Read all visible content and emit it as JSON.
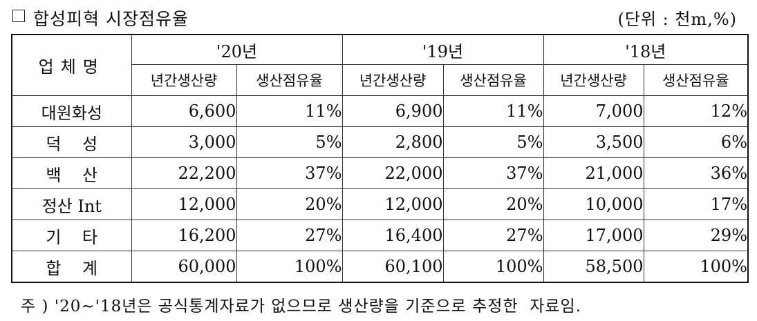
{
  "title": "합성피혁 시장점유율",
  "unit": "(단위 : 천m,%)",
  "table": {
    "company_header": "업체명",
    "years": [
      "'20년",
      "'19년",
      "'18년"
    ],
    "sub_headers": [
      "년간생산량",
      "생산점유율",
      "년간생산량",
      "생산점유율",
      "년간생산량",
      "생산점유율"
    ],
    "rows": [
      {
        "name": "대원화성",
        "cells": [
          "6,600",
          "11%",
          "6,900",
          "11%",
          "7,000",
          "12%"
        ]
      },
      {
        "name": "덕    성",
        "cells": [
          "3,000",
          "5%",
          "2,800",
          "5%",
          "3,500",
          "6%"
        ]
      },
      {
        "name": "백    산",
        "cells": [
          "22,200",
          "37%",
          "22,000",
          "37%",
          "21,000",
          "36%"
        ]
      },
      {
        "name": "정산 Int",
        "cells": [
          "12,000",
          "20%",
          "12,000",
          "20%",
          "10,000",
          "17%"
        ]
      },
      {
        "name": "기    타",
        "cells": [
          "16,200",
          "27%",
          "16,400",
          "27%",
          "17,000",
          "29%"
        ]
      },
      {
        "name": "합    계",
        "cells": [
          "60,000",
          "100%",
          "60,100",
          "100%",
          "58,500",
          "100%"
        ]
      }
    ]
  },
  "note": "주 ) '20~'18년은 공식통계자료가 없으므로 생산량을 기준으로 추정한  자료임."
}
